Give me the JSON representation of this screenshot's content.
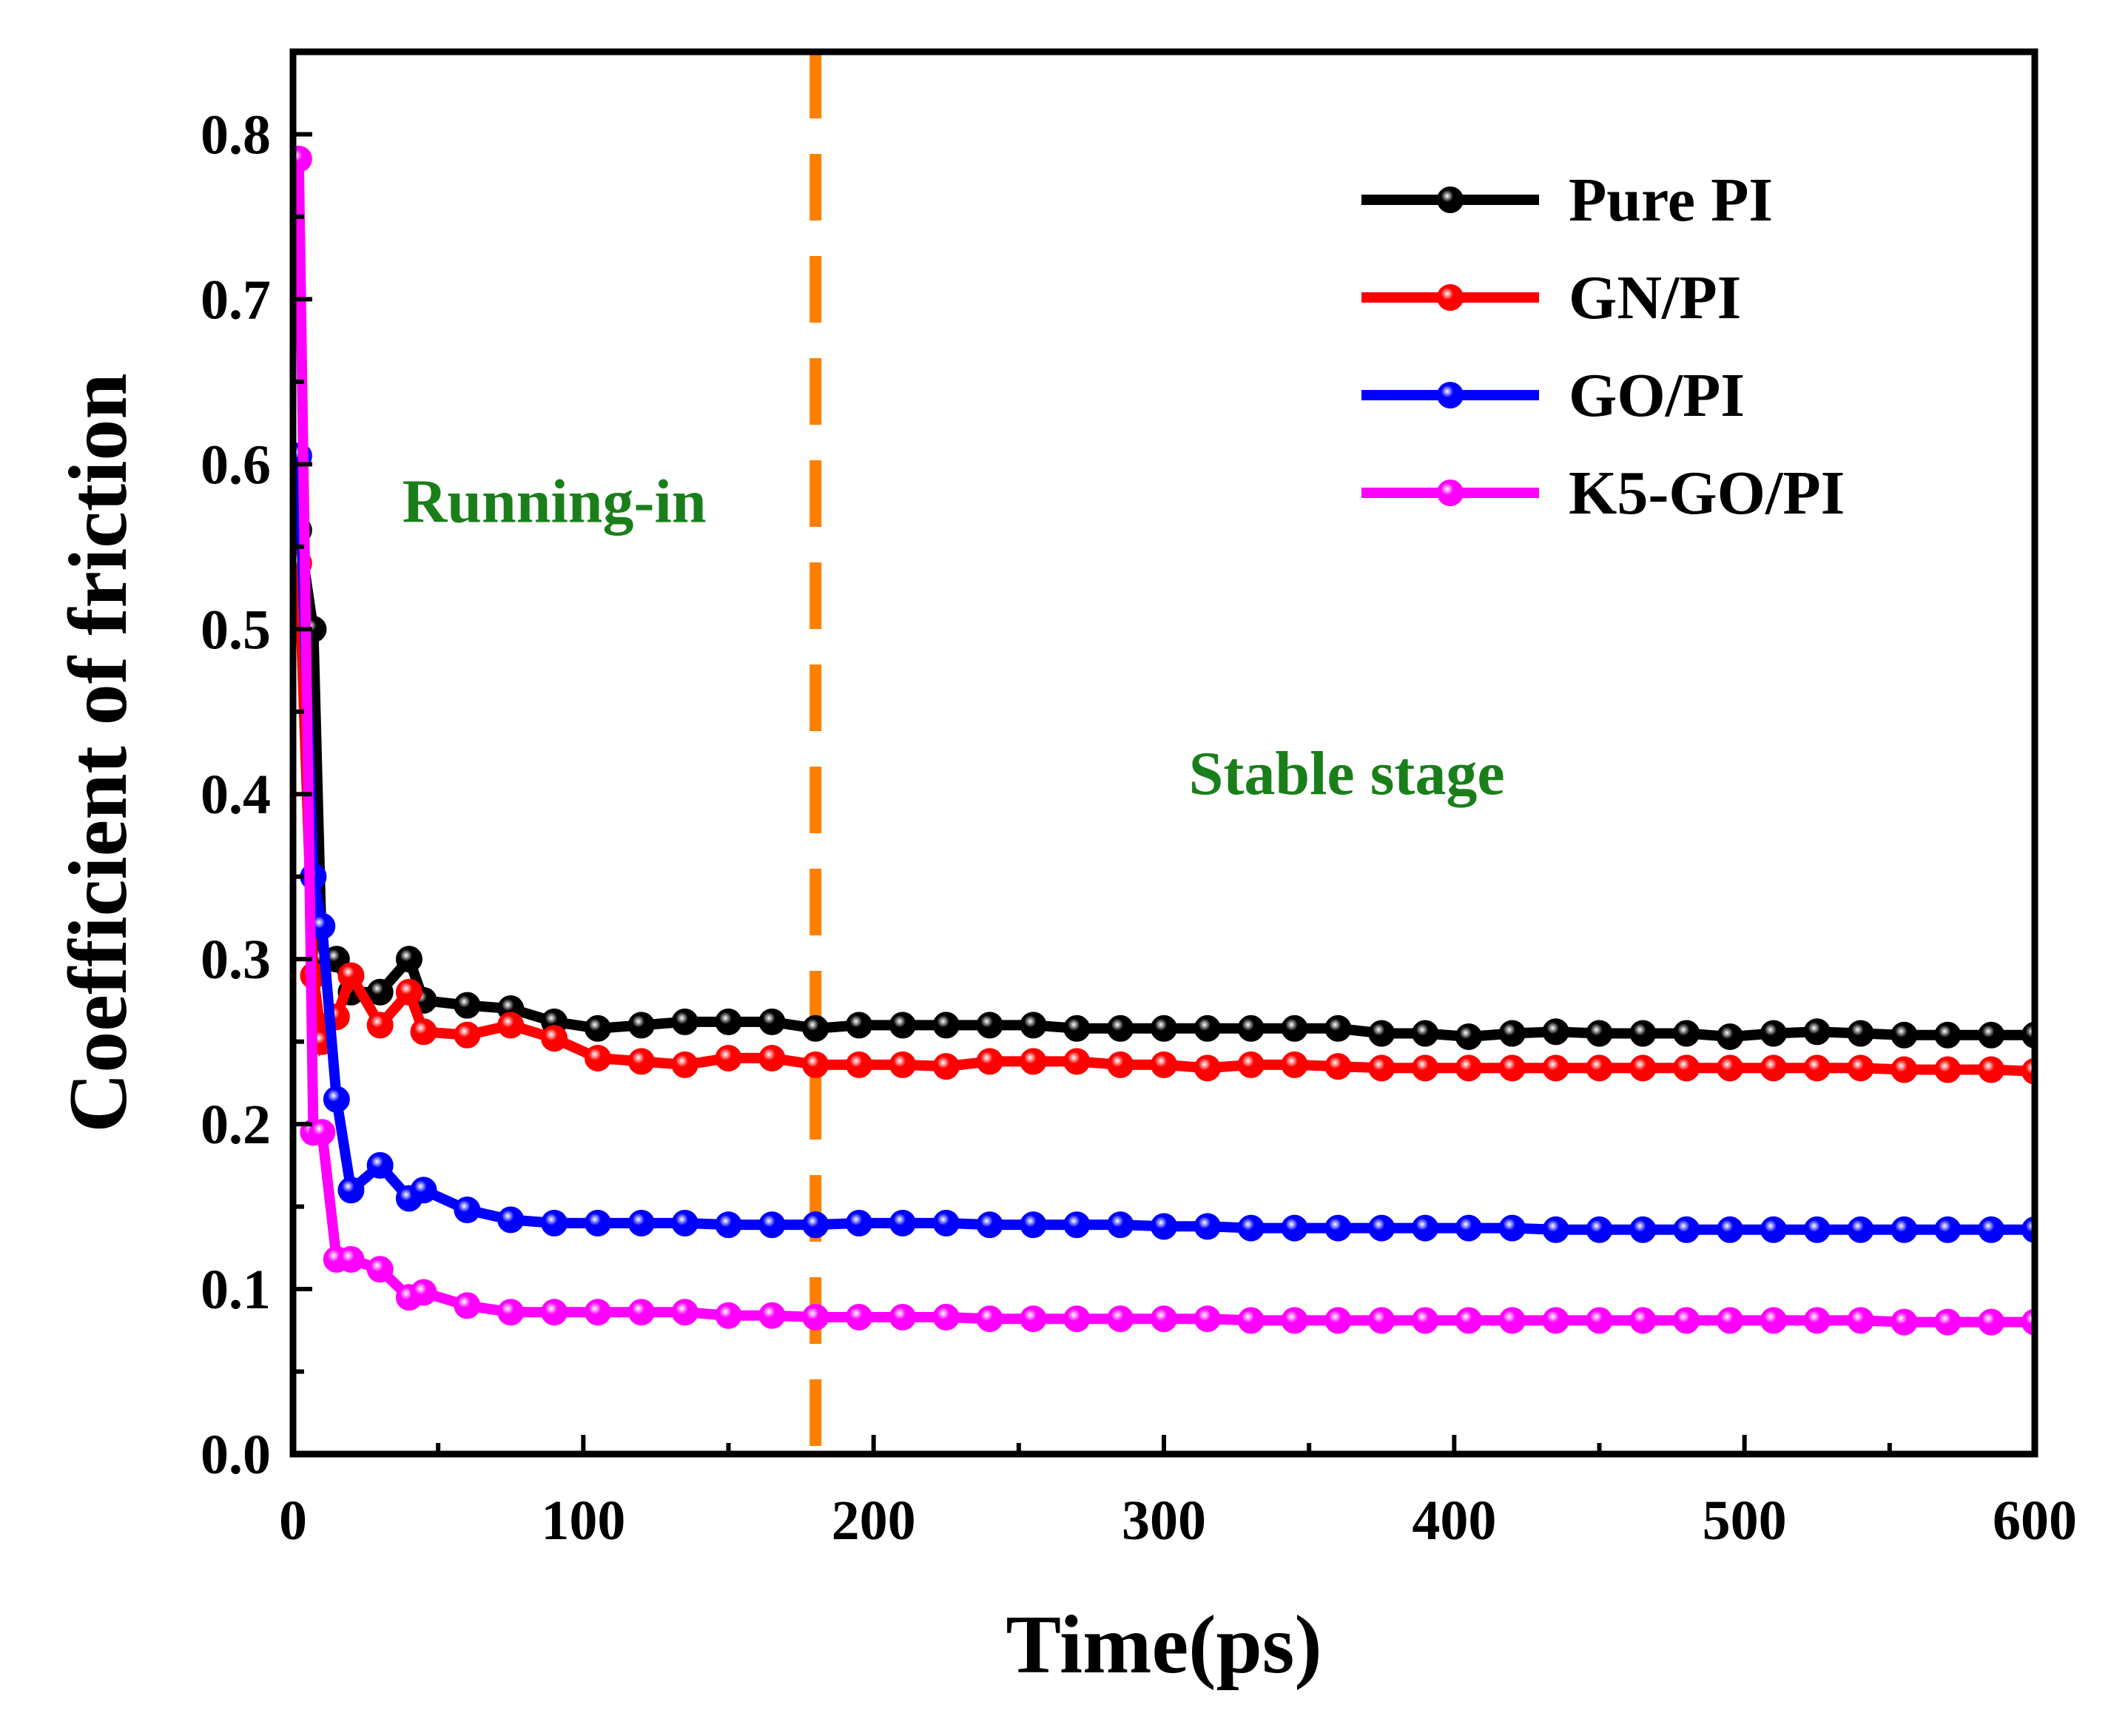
{
  "chart_data": {
    "type": "line",
    "title": "",
    "xlabel": "Time(ps)",
    "ylabel": "Coefficient of friction",
    "xlim": [
      0,
      600
    ],
    "ylim": [
      0,
      0.85
    ],
    "xticks": [
      0,
      100,
      200,
      300,
      400,
      500,
      600
    ],
    "yticks": [
      0.0,
      0.1,
      0.2,
      0.3,
      0.4,
      0.5,
      0.6,
      0.7,
      0.8
    ],
    "ytick_labels": [
      "0.0",
      "0.1",
      "0.2",
      "0.3",
      "0.4",
      "0.5",
      "0.6",
      "0.7",
      "0.8"
    ],
    "legend_position": "top-right",
    "grid": false,
    "x": [
      2,
      7,
      10,
      15,
      20,
      30,
      40,
      45,
      60,
      75,
      90,
      105,
      120,
      135,
      150,
      165,
      180,
      195,
      210,
      225,
      240,
      255,
      270,
      285,
      300,
      315,
      330,
      345,
      360,
      375,
      390,
      405,
      420,
      435,
      450,
      465,
      480,
      495,
      510,
      525,
      540,
      555,
      570,
      585,
      600
    ],
    "series": [
      {
        "name": "Pure PI",
        "color": "#000000",
        "values": [
          0.56,
          0.5,
          0.3,
          0.3,
          0.28,
          0.28,
          0.3,
          0.275,
          0.272,
          0.27,
          0.262,
          0.258,
          0.26,
          0.262,
          0.262,
          0.262,
          0.258,
          0.26,
          0.26,
          0.26,
          0.26,
          0.26,
          0.258,
          0.258,
          0.258,
          0.258,
          0.258,
          0.258,
          0.258,
          0.255,
          0.255,
          0.253,
          0.255,
          0.256,
          0.255,
          0.255,
          0.255,
          0.253,
          0.255,
          0.256,
          0.255,
          0.254,
          0.254,
          0.254,
          0.254
        ]
      },
      {
        "name": "GN/PI",
        "color": "#ff0000",
        "values": [
          0.54,
          0.29,
          0.25,
          0.265,
          0.29,
          0.26,
          0.28,
          0.256,
          0.254,
          0.26,
          0.252,
          0.24,
          0.238,
          0.236,
          0.24,
          0.24,
          0.236,
          0.236,
          0.236,
          0.235,
          0.238,
          0.238,
          0.238,
          0.236,
          0.236,
          0.234,
          0.236,
          0.236,
          0.235,
          0.234,
          0.234,
          0.234,
          0.234,
          0.234,
          0.234,
          0.234,
          0.234,
          0.234,
          0.234,
          0.234,
          0.234,
          0.233,
          0.233,
          0.233,
          0.232
        ]
      },
      {
        "name": "GO/PI",
        "color": "#0000ff",
        "values": [
          0.605,
          0.35,
          0.32,
          0.215,
          0.16,
          0.175,
          0.155,
          0.16,
          0.148,
          0.142,
          0.14,
          0.14,
          0.14,
          0.14,
          0.139,
          0.139,
          0.139,
          0.14,
          0.14,
          0.14,
          0.139,
          0.139,
          0.139,
          0.139,
          0.138,
          0.138,
          0.137,
          0.137,
          0.137,
          0.137,
          0.137,
          0.137,
          0.137,
          0.136,
          0.136,
          0.136,
          0.136,
          0.136,
          0.136,
          0.136,
          0.136,
          0.136,
          0.136,
          0.136,
          0.136
        ]
      },
      {
        "name": "K5-GO/PI",
        "color": "#ff00ff",
        "values": [
          0.785,
          0.195,
          0.195,
          0.118,
          0.118,
          0.112,
          0.095,
          0.098,
          0.09,
          0.086,
          0.086,
          0.086,
          0.086,
          0.086,
          0.084,
          0.084,
          0.083,
          0.083,
          0.083,
          0.083,
          0.082,
          0.082,
          0.082,
          0.082,
          0.082,
          0.082,
          0.081,
          0.081,
          0.081,
          0.081,
          0.081,
          0.081,
          0.081,
          0.081,
          0.081,
          0.081,
          0.081,
          0.081,
          0.081,
          0.081,
          0.081,
          0.08,
          0.08,
          0.08,
          0.08
        ]
      }
    ],
    "vline": {
      "x": 180,
      "color": "#ff7f00",
      "style": "dashed"
    },
    "annotations": [
      {
        "text": "Running-in",
        "x": 90,
        "y": 0.565,
        "color": "#1a7f1a"
      },
      {
        "text": "Stable stage",
        "x": 363,
        "y": 0.4,
        "color": "#1a7f1a"
      }
    ]
  }
}
